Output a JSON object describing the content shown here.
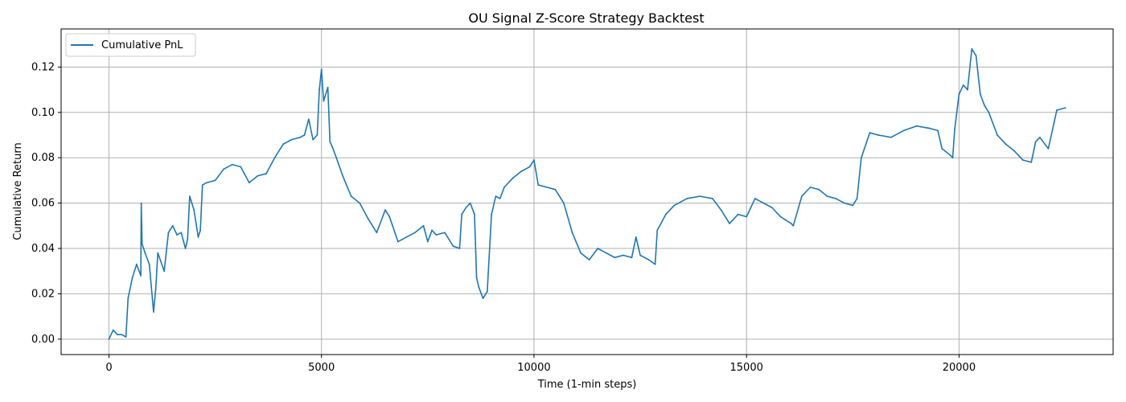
{
  "chart_data": {
    "type": "line",
    "title": "OU Signal Z-Score Strategy Backtest",
    "xlabel": "Time (1-min steps)",
    "ylabel": "Cumulative Return",
    "xlim": [
      -1125,
      23625
    ],
    "ylim": [
      -0.0068,
      0.1368
    ],
    "x_ticks": [
      0,
      5000,
      10000,
      15000,
      20000
    ],
    "x_tick_labels": [
      "0",
      "5000",
      "10000",
      "15000",
      "20000"
    ],
    "y_ticks": [
      0.0,
      0.02,
      0.04,
      0.06,
      0.08,
      0.1,
      0.12
    ],
    "y_tick_labels": [
      "0.00",
      "0.02",
      "0.04",
      "0.06",
      "0.08",
      "0.10",
      "0.12"
    ],
    "grid": true,
    "legend_position": "top-left",
    "series": [
      {
        "name": "Cumulative PnL",
        "color": "#1f77b4",
        "x": [
          0,
          100,
          200,
          300,
          400,
          450,
          550,
          650,
          750,
          760,
          780,
          850,
          950,
          1050,
          1100,
          1150,
          1300,
          1400,
          1500,
          1600,
          1700,
          1800,
          1850,
          1900,
          2000,
          2100,
          2150,
          2200,
          2300,
          2500,
          2700,
          2900,
          3100,
          3300,
          3500,
          3700,
          3900,
          4100,
          4300,
          4500,
          4600,
          4700,
          4800,
          4900,
          4950,
          5000,
          5050,
          5150,
          5200,
          5250,
          5350,
          5500,
          5700,
          5900,
          6100,
          6300,
          6500,
          6600,
          6800,
          7000,
          7200,
          7400,
          7500,
          7600,
          7700,
          7900,
          8100,
          8250,
          8300,
          8400,
          8500,
          8600,
          8650,
          8700,
          8800,
          8900,
          9000,
          9100,
          9200,
          9300,
          9500,
          9700,
          9900,
          10000,
          10100,
          10300,
          10500,
          10700,
          10900,
          11100,
          11300,
          11500,
          11700,
          11900,
          12100,
          12300,
          12400,
          12500,
          12700,
          12850,
          12900,
          13100,
          13300,
          13600,
          13900,
          14200,
          14400,
          14600,
          14800,
          15000,
          15200,
          15400,
          15600,
          15800,
          16050,
          16100,
          16300,
          16500,
          16700,
          16900,
          17100,
          17300,
          17500,
          17600,
          17700,
          17900,
          18100,
          18400,
          18700,
          19000,
          19300,
          19500,
          19600,
          19800,
          19850,
          19900,
          20000,
          20100,
          20200,
          20300,
          20400,
          20500,
          20600,
          20700,
          20900,
          21100,
          21300,
          21500,
          21700,
          21800,
          21900,
          22100,
          22300,
          22500
        ],
        "y": [
          0.0,
          0.004,
          0.002,
          0.002,
          0.001,
          0.018,
          0.027,
          0.033,
          0.028,
          0.06,
          0.042,
          0.038,
          0.033,
          0.012,
          0.022,
          0.038,
          0.03,
          0.047,
          0.05,
          0.046,
          0.047,
          0.04,
          0.044,
          0.063,
          0.057,
          0.045,
          0.048,
          0.068,
          0.069,
          0.07,
          0.075,
          0.077,
          0.076,
          0.069,
          0.072,
          0.073,
          0.08,
          0.086,
          0.088,
          0.089,
          0.09,
          0.097,
          0.088,
          0.09,
          0.11,
          0.119,
          0.105,
          0.111,
          0.087,
          0.085,
          0.08,
          0.072,
          0.063,
          0.06,
          0.053,
          0.047,
          0.057,
          0.054,
          0.043,
          0.045,
          0.047,
          0.05,
          0.043,
          0.048,
          0.046,
          0.047,
          0.041,
          0.04,
          0.055,
          0.058,
          0.06,
          0.055,
          0.027,
          0.023,
          0.018,
          0.021,
          0.055,
          0.063,
          0.062,
          0.067,
          0.071,
          0.074,
          0.076,
          0.079,
          0.068,
          0.067,
          0.066,
          0.06,
          0.047,
          0.038,
          0.035,
          0.04,
          0.038,
          0.036,
          0.037,
          0.036,
          0.045,
          0.037,
          0.035,
          0.033,
          0.048,
          0.055,
          0.059,
          0.062,
          0.063,
          0.062,
          0.057,
          0.051,
          0.055,
          0.054,
          0.062,
          0.06,
          0.058,
          0.054,
          0.051,
          0.05,
          0.063,
          0.067,
          0.066,
          0.063,
          0.062,
          0.06,
          0.059,
          0.062,
          0.08,
          0.091,
          0.09,
          0.089,
          0.092,
          0.094,
          0.093,
          0.092,
          0.084,
          0.081,
          0.08,
          0.093,
          0.108,
          0.112,
          0.11,
          0.128,
          0.125,
          0.108,
          0.103,
          0.1,
          0.09,
          0.086,
          0.083,
          0.079,
          0.078,
          0.087,
          0.089,
          0.084,
          0.101,
          0.102
        ]
      }
    ]
  }
}
